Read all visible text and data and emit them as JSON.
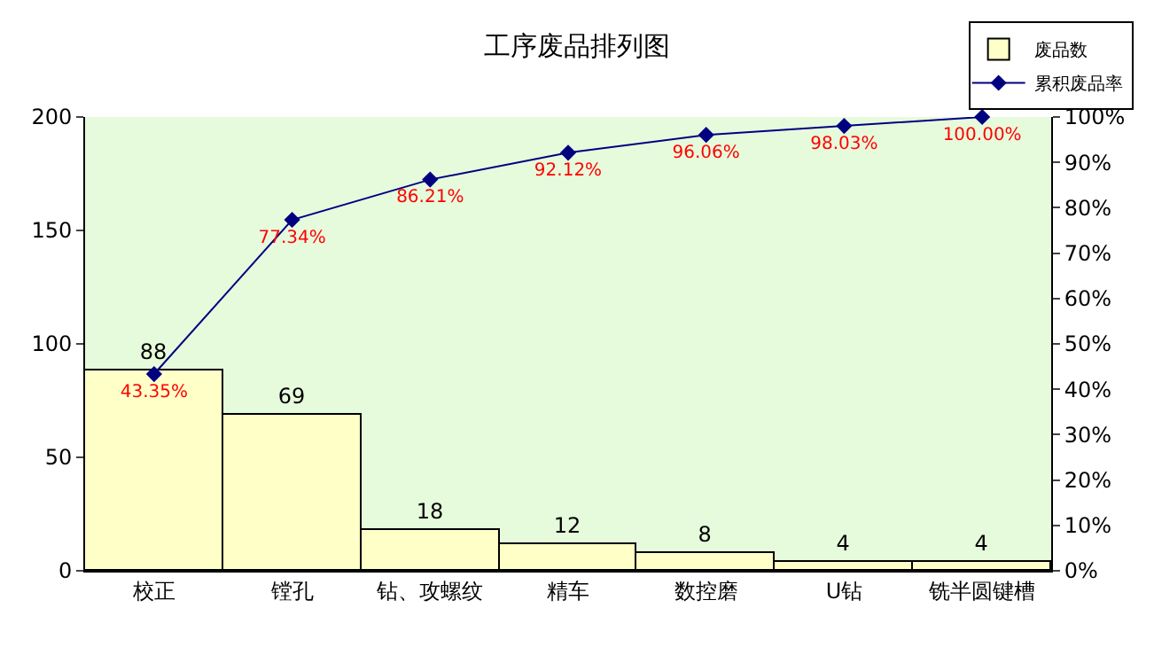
{
  "chart_data": {
    "type": "bar",
    "title": "工序废品排列图",
    "categories": [
      "校正",
      "镗孔",
      "钻、攻螺纹",
      "精车",
      "数控磨",
      "U钻",
      "铣半圆键槽"
    ],
    "series": [
      {
        "name": "废品数",
        "color": "#ffffc8",
        "values": [
          88,
          69,
          18,
          12,
          8,
          4,
          4
        ],
        "data_labels": true
      },
      {
        "name": "累积废品率",
        "type": "line",
        "axis": "y2",
        "color": "#000080",
        "marker": "diamond",
        "values": [
          43.35,
          77.34,
          86.21,
          92.12,
          96.06,
          98.03,
          100.0
        ],
        "value_labels": [
          "43.35%",
          "77.34%",
          "86.21%",
          "92.12%",
          "96.06%",
          "98.03%",
          "100.00%"
        ]
      }
    ],
    "ylim": [
      0,
      200
    ],
    "yticks": [
      0,
      50,
      100,
      150,
      200
    ],
    "y2lim": [
      0,
      100
    ],
    "y2ticks": [
      {
        "value": 0,
        "label": "0%"
      },
      {
        "value": 10,
        "label": "10%"
      },
      {
        "value": 20,
        "label": "20%"
      },
      {
        "value": 30,
        "label": "30%"
      },
      {
        "value": 40,
        "label": "40%"
      },
      {
        "value": 50,
        "label": "50%"
      },
      {
        "value": 60,
        "label": "60%"
      },
      {
        "value": 70,
        "label": "70%"
      },
      {
        "value": 80,
        "label": "80%"
      },
      {
        "value": 90,
        "label": "90%"
      },
      {
        "value": 100,
        "label": "100%"
      }
    ],
    "legend": "top right",
    "grid": false
  }
}
